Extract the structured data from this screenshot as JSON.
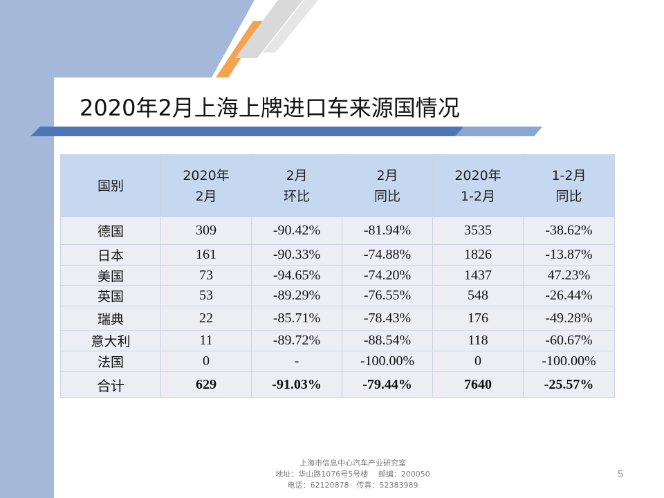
{
  "slide": {
    "title": "2020年2月上海上牌进口车来源国情况",
    "page_number": "5"
  },
  "table": {
    "headers": [
      [
        "国别"
      ],
      [
        "2020年",
        "2月"
      ],
      [
        "2月",
        "环比"
      ],
      [
        "2月",
        "同比"
      ],
      [
        "2020年",
        "1-2月"
      ],
      [
        "1-2月",
        "同比"
      ]
    ],
    "rows": [
      [
        "德国",
        "309",
        "-90.42%",
        "-81.94%",
        "3535",
        "-38.62%"
      ],
      [
        "日本",
        "161",
        "-90.33%",
        "-74.88%",
        "1826",
        "-13.87%"
      ],
      [
        "美国",
        "73",
        "-94.65%",
        "-74.20%",
        "1437",
        "47.23%"
      ],
      [
        "英国",
        "53",
        "-89.29%",
        "-76.55%",
        "548",
        "-26.44%"
      ],
      [
        "瑞典",
        "22",
        "-85.71%",
        "-78.43%",
        "176",
        "-49.28%"
      ],
      [
        "意大利",
        "11",
        "-89.72%",
        "-88.54%",
        "118",
        "-60.67%"
      ],
      [
        "法国",
        "0",
        "-",
        "-100.00%",
        "0",
        "-100.00%"
      ]
    ],
    "total": [
      "合计",
      "629",
      "-91.03%",
      "-79.44%",
      "7640",
      "-25.57%"
    ]
  },
  "footer": {
    "line1": "上海市信息中心汽车产业研究室",
    "line2": "地址：华山路1076号5号楼　 邮编：200050",
    "line3": "电话：62120878　传真：52383989"
  },
  "colors": {
    "sidebar_blue": "#a4b9d9",
    "accent_orange": "#f6a34f",
    "stripe_grey": "#d9d9d9",
    "rule_blue": "#4e75b8",
    "header_fill": "#c6d8f0",
    "cell_fill": "#eceef3"
  }
}
